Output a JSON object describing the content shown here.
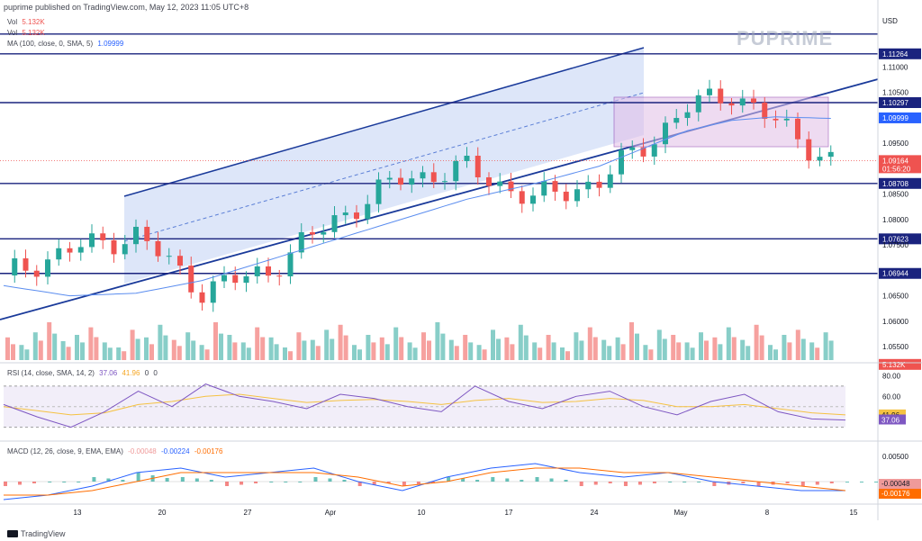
{
  "header": {
    "published": "puprime published on TradingView.com, May 12, 2023 11:05 UTC+8"
  },
  "legend": {
    "vol1": {
      "label": "Vol",
      "value": "5.132K"
    },
    "vol2": {
      "label": "Vol",
      "value": "5.132K"
    },
    "ma": {
      "label": "MA (100, close, 0, SMA, 5)",
      "value": "1.09999"
    },
    "rsi": {
      "label": "RSI (14, close, SMA, 14, 2)",
      "v1": "37.06",
      "v2": "41.96",
      "v3": "0",
      "v4": "0"
    },
    "macd": {
      "label": "MACD (12, 26, close, 9, EMA, EMA)",
      "v1": "-0.00048",
      "v2": "-0.00224",
      "v3": "-0.00176"
    }
  },
  "brand": {
    "logo_text": "PUPRIME"
  },
  "footer": {
    "text": "TradingView"
  },
  "colors": {
    "up": "#26a69a",
    "down": "#ef5350",
    "level": "#1a237e",
    "ma": "#5b8def",
    "rsi": "#7e57c2",
    "rsi_ma": "#f5c242",
    "macd": "#2962ff",
    "signal": "#ff6d00"
  },
  "chart_data": {
    "type": "line",
    "symbol_currency": "USD",
    "price_axis": {
      "ticks": [
        "1.11000",
        "1.10500",
        "1.09500",
        "1.08500",
        "1.08000",
        "1.07500",
        "1.06500",
        "1.06000",
        "1.05500"
      ],
      "range": [
        1.052,
        1.12
      ]
    },
    "time_axis": {
      "ticks": [
        "13",
        "20",
        "27",
        "Apr",
        "10",
        "17",
        "24",
        "May",
        "8",
        "15"
      ]
    },
    "levels": [
      {
        "name": "level-1",
        "value": 1.1126,
        "label": "1.11264"
      },
      {
        "name": "level-2",
        "value": 1.103,
        "label": "1.10297"
      },
      {
        "name": "level-3",
        "value": 1.0871,
        "label": "1.08708"
      },
      {
        "name": "level-4",
        "value": 1.0762,
        "label": "1.07623"
      },
      {
        "name": "level-5",
        "value": 1.0694,
        "label": "1.06944"
      }
    ],
    "price_labels": [
      {
        "name": "usd-top",
        "value": 1.1165,
        "label": ""
      },
      {
        "name": "ma-value",
        "value": 1.1,
        "label": "1.09999"
      },
      {
        "name": "last-price",
        "value": 1.0916,
        "label": "1.09164",
        "sub": "01:56:20"
      },
      {
        "name": "volume-value",
        "value": 1.0515,
        "label": "5.132K"
      }
    ],
    "close_series": {
      "x": [
        0,
        6,
        12,
        18,
        24,
        30,
        36,
        42,
        48,
        54,
        58,
        62,
        66,
        70,
        75
      ],
      "values": [
        1.069,
        1.074,
        1.077,
        1.066,
        1.07,
        1.08,
        1.088,
        1.09,
        1.084,
        1.0875,
        1.0945,
        1.102,
        1.105,
        1.099,
        1.0916
      ]
    },
    "ma_series": {
      "x": [
        0,
        6,
        12,
        18,
        24,
        30,
        36,
        42,
        48,
        54,
        58,
        62,
        66,
        70,
        75
      ],
      "values": [
        1.067,
        1.065,
        1.0655,
        1.068,
        1.072,
        1.076,
        1.08,
        1.084,
        1.087,
        1.0905,
        1.094,
        1.0975,
        1.0995,
        1.1002,
        1.0999
      ]
    },
    "rsi": {
      "ticks": [
        "80.00",
        "60.00"
      ],
      "last": "37.06",
      "last_ma": "41.96",
      "values": [
        52,
        40,
        30,
        45,
        65,
        50,
        72,
        60,
        55,
        48,
        62,
        58,
        50,
        45,
        70,
        55,
        48,
        60,
        65,
        50,
        42,
        55,
        62,
        45,
        38,
        37
      ],
      "ma_values": [
        50,
        46,
        42,
        44,
        52,
        55,
        60,
        62,
        58,
        54,
        56,
        57,
        55,
        52,
        56,
        58,
        54,
        55,
        58,
        56,
        50,
        50,
        52,
        48,
        44,
        42
      ]
    },
    "macd": {
      "ticks": [
        "0.00500"
      ],
      "last": "-0.00048",
      "last_signal": "-0.00176",
      "macd_values": [
        -0.004,
        -0.003,
        -0.001,
        0.002,
        0.003,
        0.001,
        0.002,
        0.003,
        0.0,
        -0.002,
        0.001,
        0.003,
        0.004,
        0.002,
        0.001,
        0.002,
        0.0,
        -0.001,
        -0.002,
        -0.002
      ],
      "signal_values": [
        -0.003,
        -0.003,
        -0.002,
        0.0,
        0.002,
        0.002,
        0.002,
        0.002,
        0.001,
        -0.001,
        0.0,
        0.002,
        0.003,
        0.003,
        0.002,
        0.002,
        0.001,
        0.0,
        -0.001,
        -0.002
      ]
    },
    "volume_values": [
      18,
      12,
      22,
      30,
      15,
      20,
      26,
      14,
      10,
      24,
      18,
      28,
      16,
      22,
      12,
      30,
      20,
      14,
      26,
      18,
      10,
      22,
      16,
      24,
      28,
      12,
      20,
      18,
      26,
      14,
      22,
      30,
      16,
      20,
      12,
      24,
      18,
      28,
      14,
      20,
      10,
      22,
      26,
      16,
      18,
      30,
      12,
      24,
      20,
      14,
      22,
      18,
      26,
      16,
      28,
      12,
      20,
      24,
      14,
      22
    ],
    "grid": false,
    "legend_position": "top-left"
  }
}
